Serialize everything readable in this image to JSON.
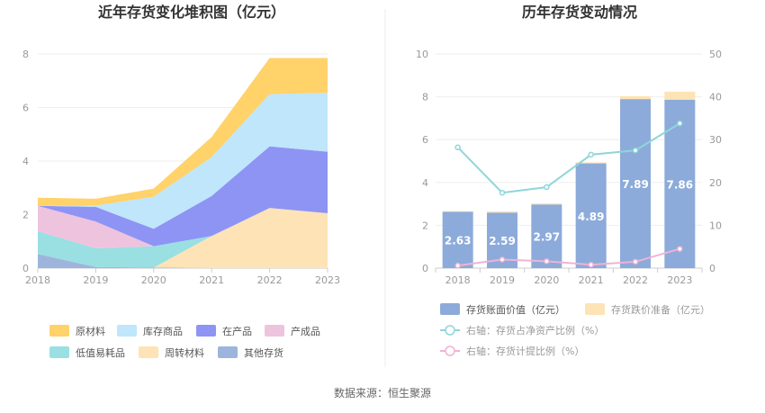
{
  "source_text": "数据来源：恒生聚源",
  "chart_data": [
    {
      "type": "area",
      "title": "近年存货变化堆积图（亿元）",
      "x": [
        "2018",
        "2019",
        "2020",
        "2021",
        "2022",
        "2023"
      ],
      "ylim": [
        0,
        8
      ],
      "yticks": [
        "0",
        "2",
        "4",
        "6",
        "8"
      ],
      "stack_order": [
        "其他存货",
        "周转材料",
        "低值易耗品",
        "产成品",
        "在产品",
        "库存商品",
        "原材料"
      ],
      "series": [
        {
          "name": "原材料",
          "color": "#FFD26A",
          "values": [
            0.3,
            0.25,
            0.3,
            0.75,
            1.35,
            1.3
          ]
        },
        {
          "name": "库存商品",
          "color": "#BFE6FB",
          "values": [
            0.0,
            0.05,
            1.2,
            1.45,
            1.95,
            2.2
          ]
        },
        {
          "name": "在产品",
          "color": "#8E94F4",
          "values": [
            0.0,
            0.55,
            0.65,
            1.5,
            2.3,
            2.3
          ]
        },
        {
          "name": "产成品",
          "color": "#EEC3DE",
          "values": [
            0.95,
            1.0,
            0.0,
            0.0,
            0.0,
            0.0
          ]
        },
        {
          "name": "低值易耗品",
          "color": "#9ADFE2",
          "values": [
            0.85,
            0.7,
            0.8,
            0.0,
            0.0,
            0.0
          ]
        },
        {
          "name": "周转材料",
          "color": "#FDE3B5",
          "values": [
            0.0,
            0.0,
            0.0,
            1.2,
            2.25,
            2.05
          ]
        },
        {
          "name": "其他存货",
          "color": "#9DB5DC",
          "values": [
            0.53,
            0.04,
            0.02,
            0.0,
            0.0,
            0.0
          ]
        }
      ],
      "legend": {
        "placement": "bottom",
        "order": [
          "原材料",
          "库存商品",
          "在产品",
          "产成品",
          "低值易耗品",
          "周转材料",
          "其他存货"
        ]
      }
    },
    {
      "type": "bar",
      "title": "历年存货变动情况",
      "categories": [
        "2018",
        "2019",
        "2020",
        "2021",
        "2022",
        "2023"
      ],
      "ylim": [
        0,
        10
      ],
      "yticks": [
        "0",
        "2",
        "4",
        "6",
        "8",
        "10"
      ],
      "y2lim": [
        0,
        50
      ],
      "y2ticks": [
        "0",
        "10",
        "20",
        "30",
        "40",
        "50"
      ],
      "series": [
        {
          "name": "存货账面价值（亿元）",
          "kind": "bar",
          "color": "#8CABDA",
          "values": [
            2.63,
            2.59,
            2.97,
            4.89,
            7.89,
            7.86
          ],
          "labels": [
            "2.63",
            "2.59",
            "2.97",
            "4.89",
            "7.89",
            "7.86"
          ]
        },
        {
          "name": "存货跌价准备（亿元）",
          "kind": "bar-stack",
          "color": "#FDE3B5",
          "values": [
            0.03,
            0.06,
            0.05,
            0.05,
            0.14,
            0.38
          ]
        },
        {
          "name": "右轴：存货占净资产比例（%）",
          "kind": "line",
          "axis": "right",
          "color": "#8ED6DA",
          "values": [
            28.2,
            17.6,
            18.9,
            26.5,
            27.5,
            33.8
          ]
        },
        {
          "name": "右轴：存货计提比例（%）",
          "kind": "line",
          "axis": "right",
          "color": "#F0B2D6",
          "values": [
            0.6,
            2.0,
            1.6,
            0.8,
            1.5,
            4.5
          ]
        }
      ],
      "legend": {
        "placement": "bottom"
      }
    }
  ]
}
